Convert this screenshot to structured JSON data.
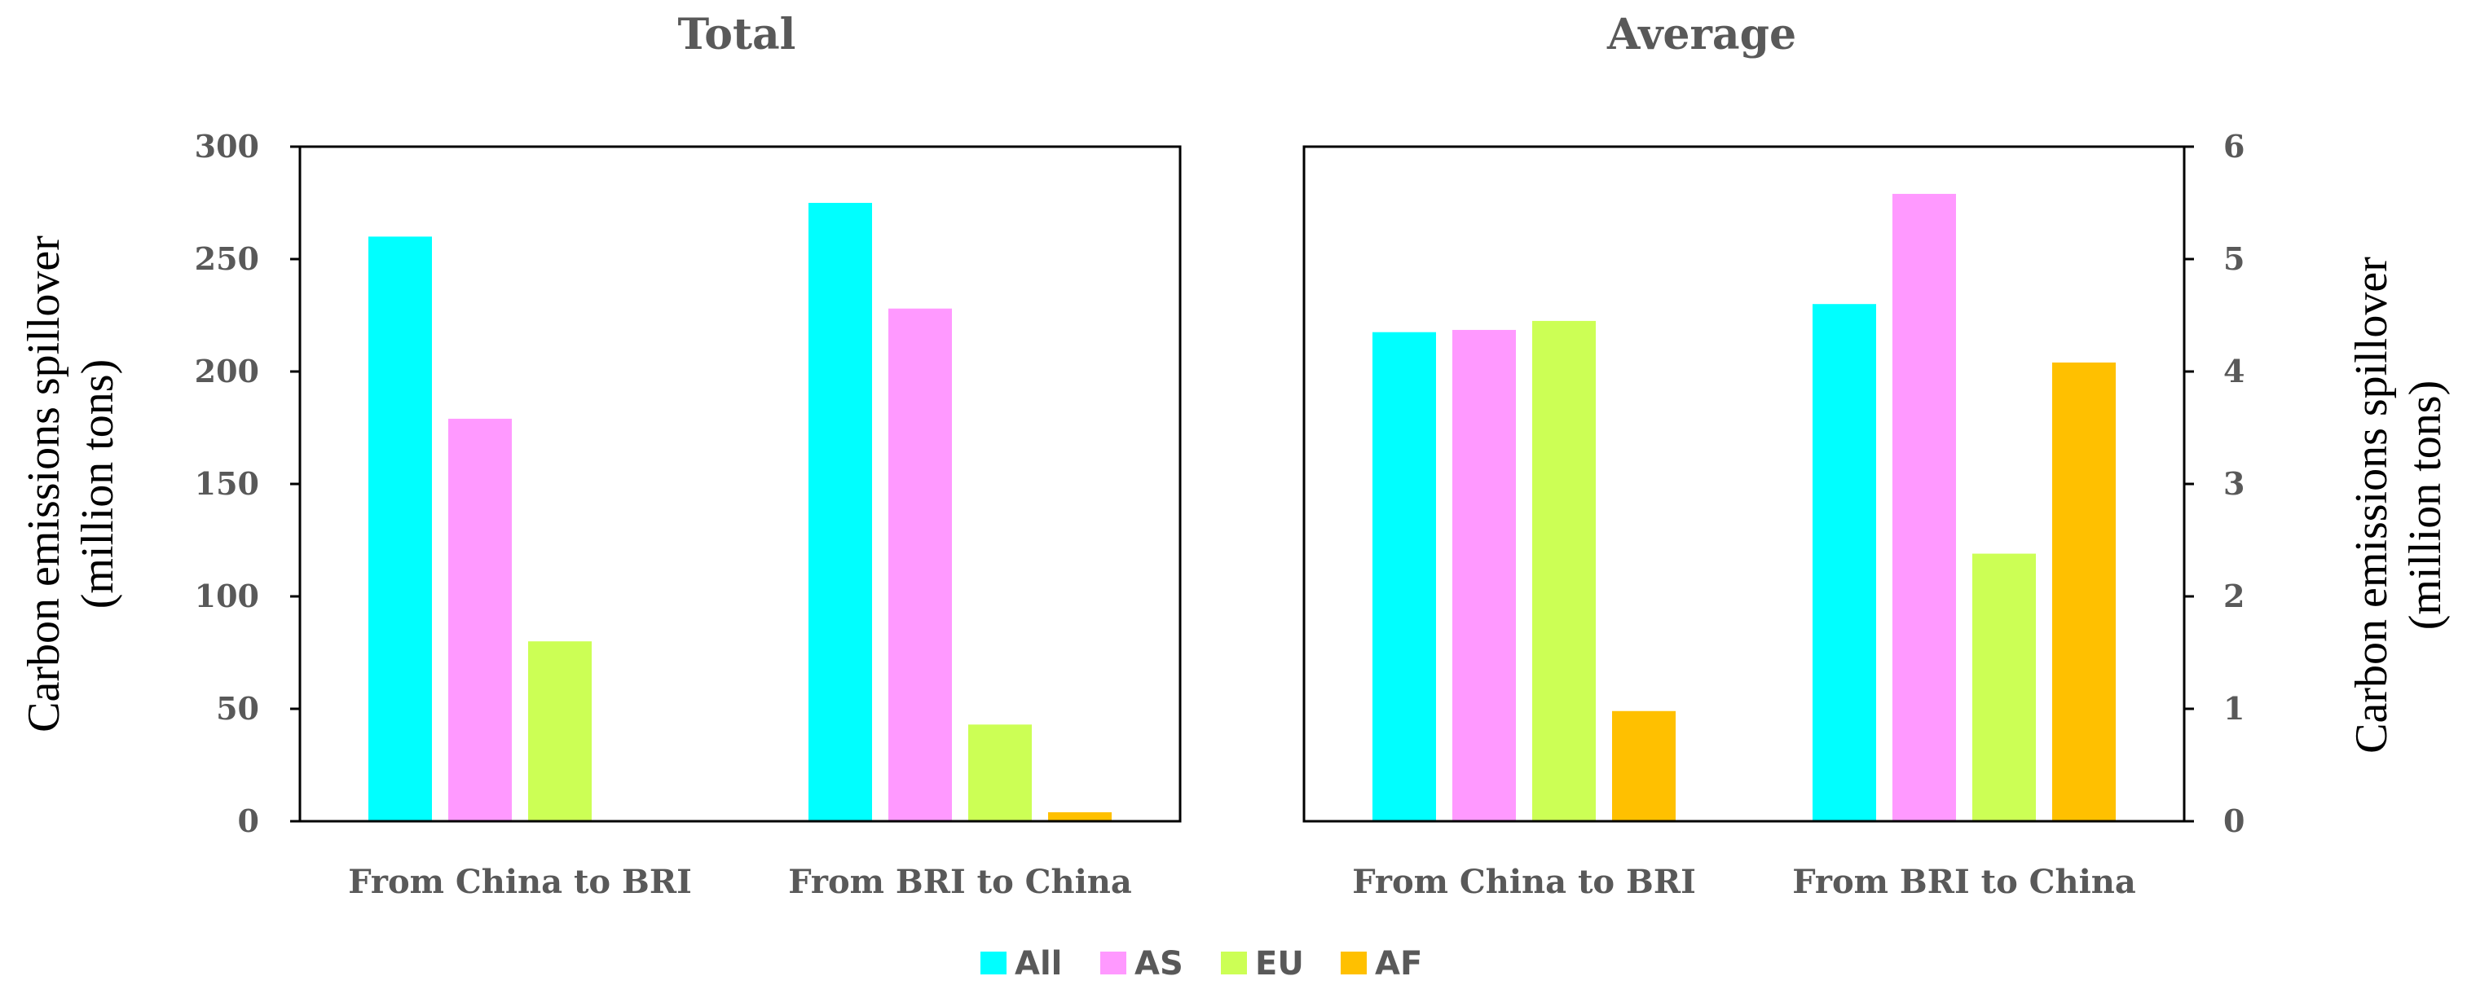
{
  "chart_data": [
    {
      "type": "bar",
      "title": "Total",
      "categories": [
        "From China to BRI",
        "From BRI  to China"
      ],
      "series": [
        {
          "name": "All",
          "values": [
            260,
            275
          ]
        },
        {
          "name": "AS",
          "values": [
            179,
            228
          ]
        },
        {
          "name": "EU",
          "values": [
            80,
            43
          ]
        },
        {
          "name": "AF",
          "values": [
            0,
            4
          ]
        }
      ],
      "ylabel": [
        "Carbon emissions spillover",
        "(million tons)"
      ],
      "ylim": [
        0,
        300
      ],
      "yticks": [
        "0",
        "50",
        "100",
        "150",
        "200",
        "250",
        "300"
      ],
      "yaxis_side": "left",
      "grid": false
    },
    {
      "type": "bar",
      "title": "Average",
      "categories": [
        "From China to BRI",
        "From BRI  to China"
      ],
      "series": [
        {
          "name": "All",
          "values": [
            4.35,
            4.6
          ]
        },
        {
          "name": "AS",
          "values": [
            4.37,
            5.58
          ]
        },
        {
          "name": "EU",
          "values": [
            4.45,
            2.38
          ]
        },
        {
          "name": "AF",
          "values": [
            0.98,
            4.08
          ]
        }
      ],
      "ylabel": [
        "Carbon emissions spillover",
        "(million tons)"
      ],
      "ylim": [
        0,
        6
      ],
      "yticks": [
        "0",
        "1",
        "2",
        "3",
        "4",
        "5",
        "6"
      ],
      "yaxis_side": "right",
      "grid": false
    }
  ],
  "legend": {
    "position": "bottom-center",
    "items": [
      {
        "label": "All",
        "color": "#00FFFF"
      },
      {
        "label": "AS",
        "color": "#FF99FF"
      },
      {
        "label": "EU",
        "color": "#CCFF55"
      },
      {
        "label": "AF",
        "color": "#FFC000"
      }
    ]
  }
}
